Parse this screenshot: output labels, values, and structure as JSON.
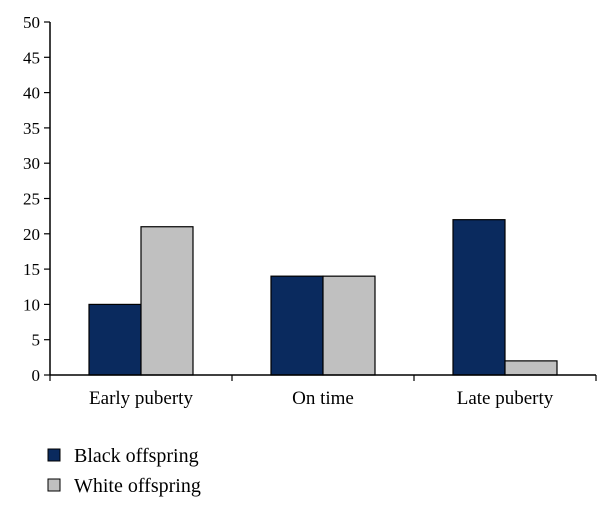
{
  "chart_data": {
    "type": "bar",
    "categories": [
      "Early puberty",
      "On time",
      "Late puberty"
    ],
    "series": [
      {
        "name": "Black offspring",
        "values": [
          10,
          14,
          22
        ],
        "color": "#0a2a5e"
      },
      {
        "name": "White offspring",
        "values": [
          21,
          14,
          2
        ],
        "color": "#c0c0c0"
      }
    ],
    "title": "",
    "xlabel": "",
    "ylabel": "",
    "ylim": [
      0,
      50
    ],
    "yticks": [
      "0",
      "5",
      "10",
      "15",
      "20",
      "25",
      "30",
      "35",
      "40",
      "45",
      "50"
    ],
    "grid": false,
    "legend_position": "bottom-left"
  }
}
